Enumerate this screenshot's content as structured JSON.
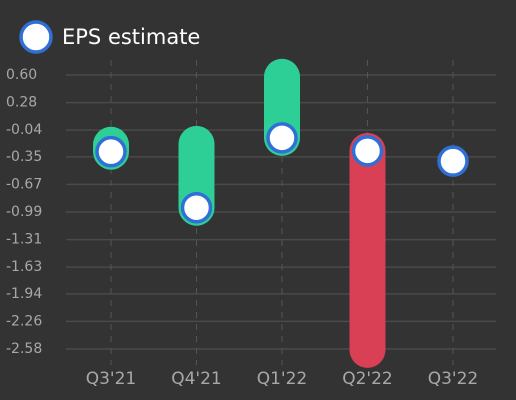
{
  "chart_data": {
    "type": "eps",
    "categories": [
      "Q3'21",
      "Q4'21",
      "Q1'22",
      "Q2'22",
      "Q3'22"
    ],
    "estimate": {
      "name": "EPS estimate",
      "color": "#2f6fd6",
      "values": [
        -0.29,
        -0.94,
        -0.13,
        -0.28,
        -0.4
      ]
    },
    "actual": {
      "values": [
        -0.21,
        -0.2,
        0.58,
        -2.59,
        null
      ]
    },
    "beat_color": "#2ecf96",
    "miss_color": "#d93f55",
    "ylim": [
      -2.58,
      0.6
    ],
    "yticks": [
      {
        "value": 0.6,
        "label": "0.60"
      },
      0.28,
      -0.04,
      -0.35,
      -0.67,
      -0.99,
      -1.31,
      -1.63,
      -1.94,
      -2.26,
      -2.58
    ],
    "grid": true
  }
}
